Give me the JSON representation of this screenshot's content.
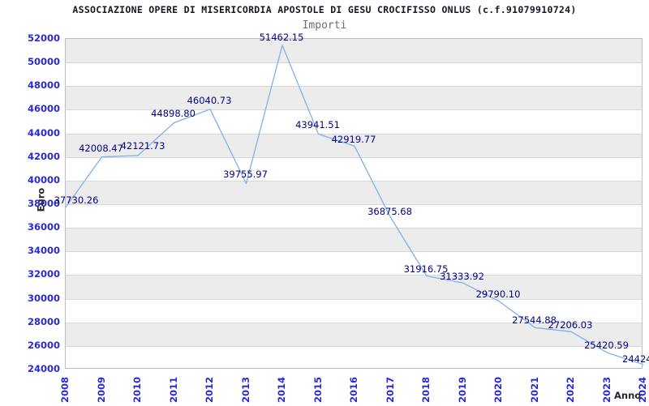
{
  "header": {
    "title": "ASSOCIAZIONE OPERE DI MISERICORDIA APOSTOLE DI GESU CROCIFISSO ONLUS (c.f.91079910724)",
    "subtitle": "Importi"
  },
  "chart_data": {
    "type": "line",
    "title": "Importi",
    "xlabel": "Anno",
    "ylabel": "Euro",
    "categories": [
      "2008",
      "2009",
      "2010",
      "2011",
      "2012",
      "2013",
      "2014",
      "2015",
      "2016",
      "2017",
      "2018",
      "2019",
      "2020",
      "2021",
      "2022",
      "2023",
      "2024"
    ],
    "values": [
      37730.26,
      42008.47,
      42121.73,
      44898.8,
      46040.73,
      39755.97,
      51462.15,
      43941.51,
      42919.77,
      36875.68,
      31916.75,
      31333.92,
      29790.1,
      27544.88,
      27206.03,
      25420.59,
      24424.0
    ],
    "point_labels": [
      "37730.26",
      "42008.47",
      "42121.73",
      "44898.80",
      "46040.73",
      "39755.97",
      "51462.15",
      "43941.51",
      "42919.77",
      "36875.68",
      "31916.75",
      "31333.92",
      "29790.10",
      "27544.88",
      "27206.03",
      "25420.59",
      "24424."
    ],
    "ylim": [
      24000,
      52000
    ],
    "yticks": [
      52000,
      50000,
      48000,
      46000,
      44000,
      42000,
      40000,
      38000,
      36000,
      34000,
      32000,
      30000,
      28000,
      26000,
      24000
    ],
    "grid": true,
    "legend": "none",
    "colors": {
      "line": "#7fb2e5",
      "tick_label": "#2929d6",
      "point_label": "#000085",
      "band": "#ececec",
      "gridline": "#d8d8d8",
      "border": "#bdbdbd",
      "axis_title": "#26262e",
      "title": "#17171f",
      "subtitle": "#6e6e6e"
    }
  }
}
